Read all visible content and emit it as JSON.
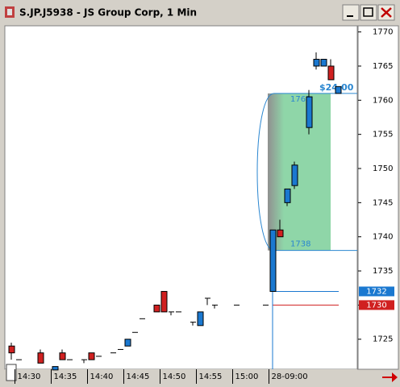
{
  "chart_data": {
    "type": "candlestick",
    "title": "S.JP.J5938 - JS Group Corp, 1 Min",
    "categories": [
      null,
      "14:30",
      null,
      null,
      null,
      null,
      "14:35",
      null,
      null,
      null,
      null,
      "14:40",
      null,
      null,
      null,
      null,
      "14:45",
      null,
      null,
      null,
      null,
      "14:50",
      null,
      null,
      null,
      null,
      "14:55",
      null,
      null,
      null,
      null,
      "15:00",
      null,
      null,
      null,
      null,
      "28-09:00",
      null,
      null,
      null,
      null,
      null,
      null,
      null,
      null,
      null
    ],
    "open": [
      1724,
      1722,
      null,
      null,
      1723,
      null,
      1720.5,
      1723,
      1722,
      null,
      1722,
      1723,
      1722.5,
      null,
      1723,
      1723.5,
      1724,
      1726,
      1728,
      null,
      1730,
      1732,
      1729,
      1729,
      null,
      1727.5,
      1727,
      1731,
      1730,
      null,
      null,
      1730,
      null,
      null,
      null,
      1730,
      1732,
      1741,
      1745,
      1747.5,
      null,
      1756,
      1765,
      1765,
      1765,
      1761
    ],
    "high": [
      1724.5,
      1722,
      null,
      null,
      1723.5,
      null,
      1721,
      1723.5,
      1722,
      null,
      1722,
      1723,
      1722.5,
      null,
      1723,
      1723.5,
      1725,
      1726,
      1728,
      null,
      1730,
      1732,
      1729,
      1729,
      null,
      1727.5,
      1729,
      1731,
      1730,
      null,
      null,
      1730,
      null,
      null,
      null,
      1730,
      1741,
      1742.5,
      1747,
      1751,
      null,
      1761.5,
      1767,
      1766,
      1766,
      1762
    ],
    "low": [
      1722,
      1722,
      null,
      null,
      1721.5,
      null,
      1720.5,
      1722,
      1722,
      null,
      1721.5,
      1722,
      1722.5,
      null,
      1723,
      1723.5,
      1724,
      1726,
      1728,
      null,
      1729,
      1729,
      1728.5,
      1729,
      null,
      1727,
      1727,
      1730,
      1729.5,
      null,
      null,
      1730,
      null,
      null,
      null,
      1730,
      1732,
      1740.5,
      1744.5,
      1747,
      null,
      1755,
      1764.5,
      1765,
      1763,
      1761
    ],
    "close": [
      1723,
      1722,
      null,
      null,
      1721.5,
      null,
      1721,
      1722,
      1722,
      null,
      1722,
      1722,
      1722.5,
      null,
      1723,
      1723.5,
      1725,
      1726,
      1728,
      null,
      1729,
      1729,
      1729,
      1729,
      null,
      1727.5,
      1729,
      1731,
      1730,
      null,
      null,
      1730,
      null,
      null,
      null,
      1730,
      1741,
      1740,
      1747,
      1750.5,
      null,
      1760.5,
      1766,
      1766,
      1763,
      1762
    ],
    "up_color": "#1a78d0",
    "down_color": "#d02020",
    "ylim": [
      1720.6,
      1770.9
    ],
    "yticks": [
      1725,
      1730,
      1735,
      1740,
      1745,
      1750,
      1755,
      1760,
      1765,
      1770
    ],
    "price_markers": [
      {
        "value": 1732,
        "color": "#1a78d0"
      },
      {
        "value": 1730,
        "color": "#d02020"
      }
    ],
    "measure": {
      "high": 1761,
      "low": 1738,
      "change_label": "$24.00",
      "color": "#2a86d0",
      "fill": "#8fd6a8"
    }
  }
}
